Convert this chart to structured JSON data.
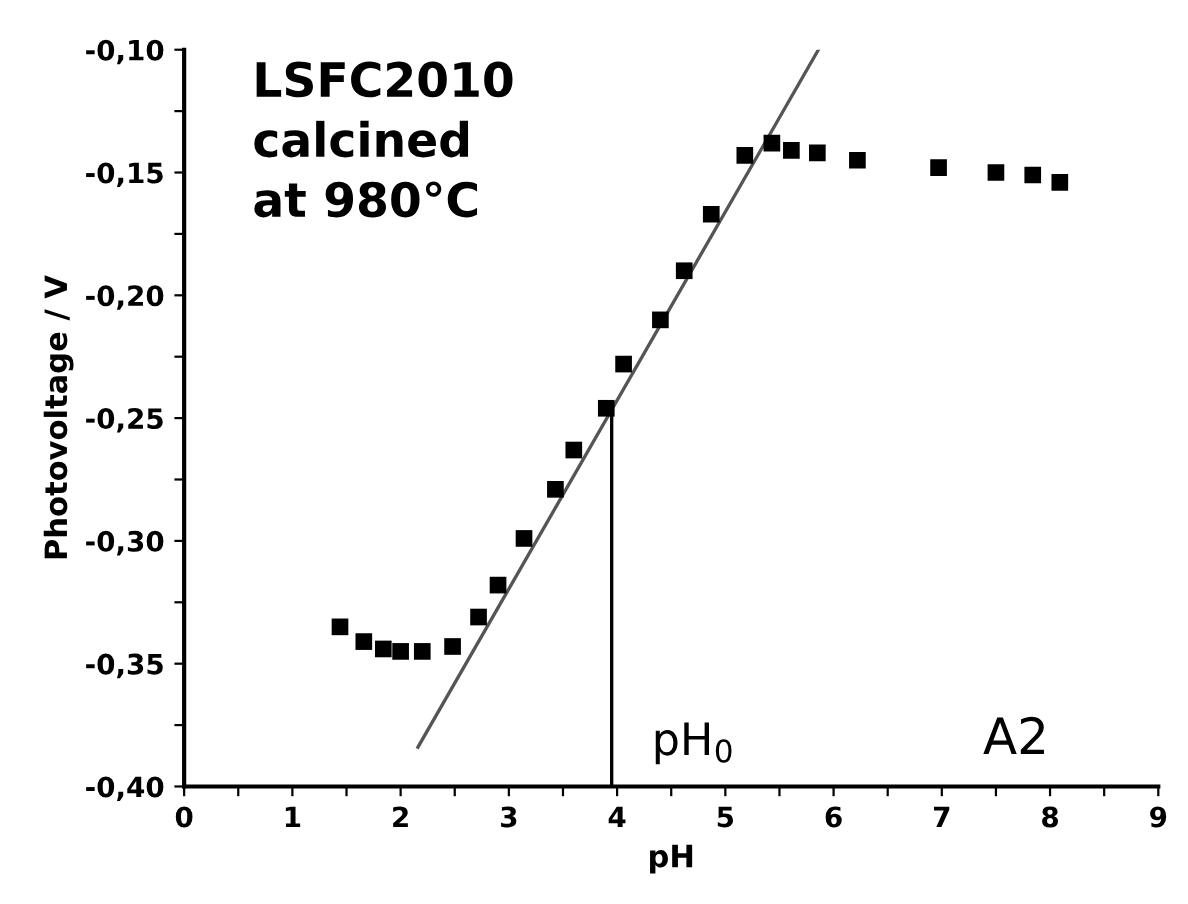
{
  "chart_data": {
    "type": "scatter",
    "xlabel": "pH",
    "ylabel": "Photovoltage / V",
    "series": [
      {
        "color": "#000000",
        "marker": "square",
        "x": [
          1.44,
          1.66,
          1.84,
          2.0,
          2.2,
          2.48,
          2.72,
          2.9,
          3.14,
          3.43,
          3.6,
          3.9,
          4.06,
          4.4,
          4.62,
          4.87,
          5.18,
          5.43,
          5.61,
          5.85,
          6.22,
          6.97,
          7.5,
          7.84,
          8.09
        ],
        "values": [
          -0.335,
          -0.341,
          -0.344,
          -0.345,
          -0.345,
          -0.343,
          -0.331,
          -0.318,
          -0.299,
          -0.279,
          -0.263,
          -0.246,
          -0.228,
          -0.21,
          -0.19,
          -0.167,
          -0.143,
          -0.138,
          -0.141,
          -0.142,
          -0.145,
          -0.148,
          -0.15,
          -0.151,
          -0.154
        ]
      },
      {
        "type": "line",
        "color": "#555555",
        "x": [
          2.16,
          5.86
        ],
        "values": [
          -0.384,
          -0.1
        ]
      },
      {
        "type": "line",
        "color": "#000000",
        "x": [
          3.95,
          3.95
        ],
        "values": [
          -0.4,
          -0.246
        ]
      }
    ],
    "annotations": [
      "LSFC2010\ncalcined\nat 980°C",
      "pH$_{0}$",
      "A2"
    ],
    "xlim": [
      0,
      9
    ],
    "ylim": [
      -0.4,
      -0.1
    ],
    "xticks": [
      0,
      {
        "value": 0.5,
        "label": null
      },
      1,
      {
        "value": 1.5,
        "label": null
      },
      2,
      {
        "value": 2.5,
        "label": null
      },
      3,
      {
        "value": 3.5,
        "label": null
      },
      4,
      {
        "value": 4.5,
        "label": null
      },
      5,
      {
        "value": 5.5,
        "label": null
      },
      6,
      {
        "value": 6.5,
        "label": null
      },
      7,
      {
        "value": 7.5,
        "label": null
      },
      8,
      {
        "value": 8.5,
        "label": null
      },
      9
    ],
    "yticks": [
      {
        "value": -0.4,
        "label": "-0,40"
      },
      {
        "value": -0.375,
        "label": null
      },
      {
        "value": -0.35,
        "label": "-0,35"
      },
      {
        "value": -0.325,
        "label": null
      },
      {
        "value": -0.3,
        "label": "-0,30"
      },
      {
        "value": -0.275,
        "label": null
      },
      {
        "value": -0.25,
        "label": "-0,25"
      },
      {
        "value": -0.225,
        "label": null
      },
      {
        "value": -0.2,
        "label": "-0,20"
      },
      {
        "value": -0.175,
        "label": null
      },
      {
        "value": -0.15,
        "label": "-0,15"
      },
      {
        "value": -0.125,
        "label": null
      },
      {
        "value": -0.1,
        "label": "-0,10"
      }
    ],
    "grid": false,
    "legend": false
  }
}
